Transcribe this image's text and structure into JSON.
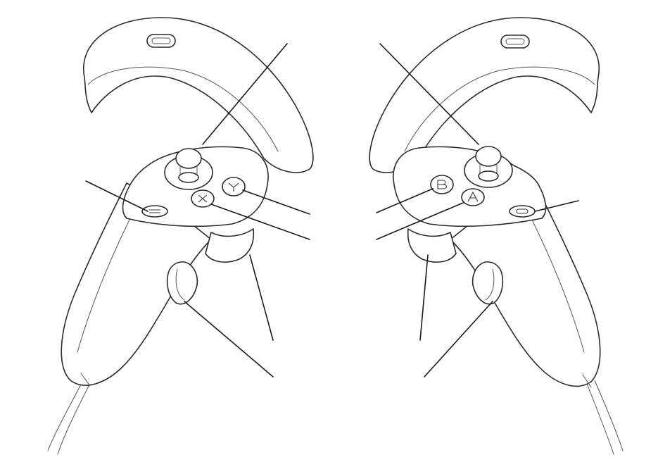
{
  "diagram": {
    "subject": "vr-controller-pair",
    "stroke_color": "#2b2b2b",
    "leader_color": "#1a1a1a",
    "background": "#ffffff",
    "left_controller": {
      "components": [
        "tracking-ring",
        "thumbstick",
        "y-button",
        "x-button",
        "menu-button",
        "grip-button",
        "trigger"
      ]
    },
    "right_controller": {
      "components": [
        "tracking-ring",
        "thumbstick",
        "b-button",
        "a-button",
        "oculus-button",
        "grip-button",
        "trigger"
      ]
    }
  }
}
